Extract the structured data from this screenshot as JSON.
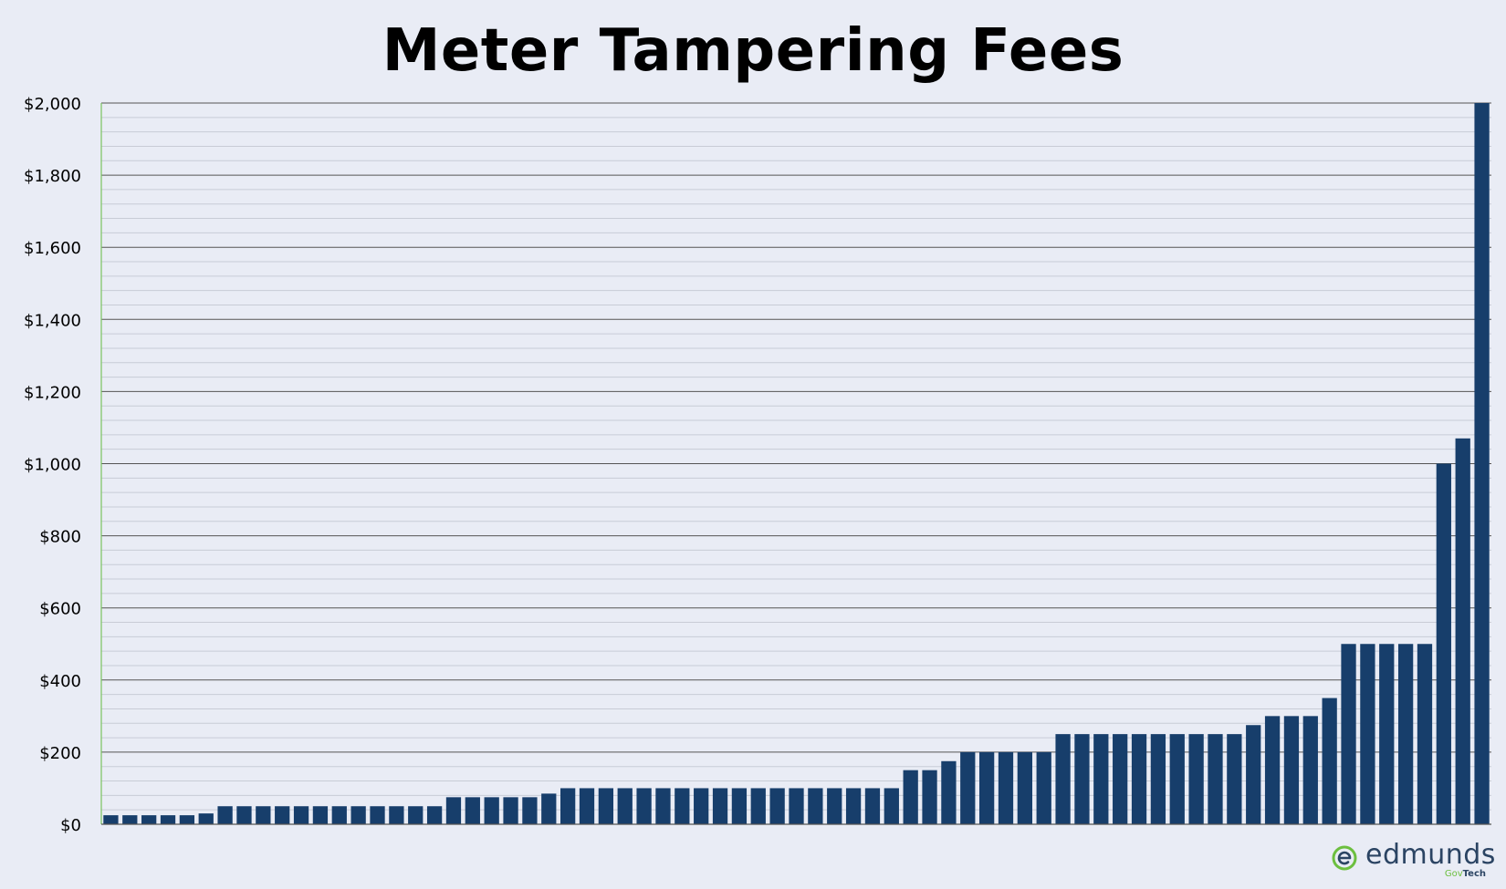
{
  "colors": {
    "bar": "#173e6b",
    "background": "#e9ecf5",
    "gridline_major": "#555555",
    "gridline_minor": "#c8ccd6",
    "axis_left": "#7ac35f",
    "logo_text": "#2b4463",
    "logo_green": "#6cbf3f"
  },
  "logo": {
    "icon": "edmunds-e-icon",
    "word": "edmunds",
    "sub_prefix": "Gov",
    "sub_suffix": "Tech"
  },
  "chart_data": {
    "type": "bar",
    "title": "Meter Tampering Fees",
    "xlabel": "",
    "ylabel": "",
    "ylim": [
      0,
      2000
    ],
    "y_major_step": 200,
    "y_minor_step": 40,
    "y_tick_labels": [
      "$0",
      "$200",
      "$400",
      "$600",
      "$800",
      "$1,000",
      "$1,200",
      "$1,400",
      "$1,600",
      "$1,800",
      "$2,000"
    ],
    "grid": true,
    "legend": "none",
    "values": [
      25,
      25,
      25,
      25,
      25,
      30,
      50,
      50,
      50,
      50,
      50,
      50,
      50,
      50,
      50,
      50,
      50,
      50,
      75,
      75,
      75,
      75,
      75,
      85,
      100,
      100,
      100,
      100,
      100,
      100,
      100,
      100,
      100,
      100,
      100,
      100,
      100,
      100,
      100,
      100,
      100,
      100,
      150,
      150,
      175,
      200,
      200,
      200,
      200,
      200,
      250,
      250,
      250,
      250,
      250,
      250,
      250,
      250,
      250,
      250,
      275,
      300,
      300,
      300,
      350,
      500,
      500,
      500,
      500,
      500,
      1000,
      1070,
      2000
    ]
  }
}
